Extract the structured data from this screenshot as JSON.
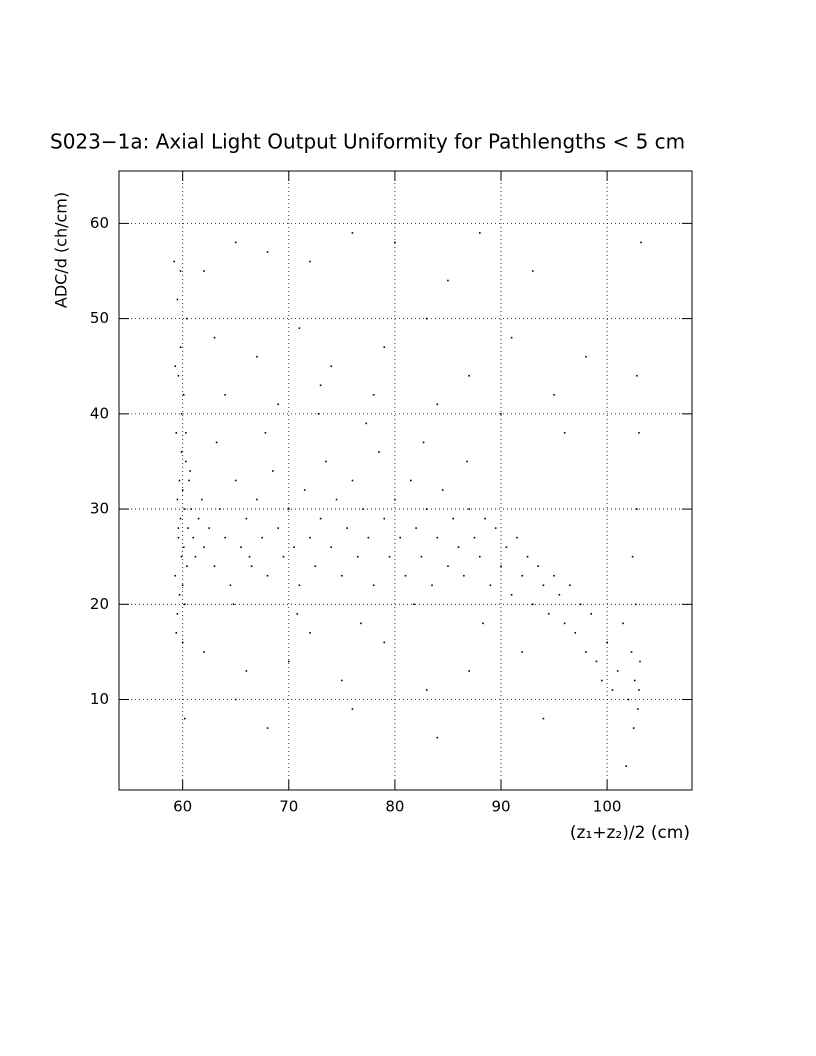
{
  "chart_data": {
    "type": "scatter",
    "title": "S023−1a: Axial Light Output Uniformity for Pathlengths < 5 cm",
    "x_label": "(z₁+z₂)/2 (cm)",
    "y_label": "ADC/d (ch/cm)",
    "xlim": [
      54,
      108
    ],
    "ylim": [
      0.5,
      65.5
    ],
    "xticks": [
      60,
      70,
      80,
      90,
      100
    ],
    "yticks": [
      10,
      20,
      30,
      40,
      50,
      60
    ],
    "grid": true,
    "series": [
      {
        "color": "#000000",
        "x": [
          59.2,
          59.5,
          59.8,
          59.6,
          60.1,
          59.4,
          59.9,
          60.3,
          59.7,
          60.0,
          59.5,
          60.2,
          59.8,
          60.5,
          59.6,
          60.1,
          59.9,
          60.4,
          59.3,
          60.0,
          59.7,
          60.2,
          59.5,
          60.6,
          60.8,
          61.0,
          61.2,
          60.3,
          59.9,
          60.0,
          59.4,
          60.2,
          60.7,
          61.5,
          59.8,
          60.4,
          59.3,
          61.8,
          62.0,
          59.6,
          62.5,
          63,
          63.5,
          64,
          64.5,
          65,
          65.5,
          66,
          66.5,
          67,
          67.5,
          68,
          68.5,
          69,
          69.5,
          70,
          70.5,
          71,
          71.5,
          72,
          72.5,
          73,
          73.5,
          74,
          74.5,
          75,
          75.5,
          76,
          76.5,
          77,
          77.5,
          78,
          78.5,
          79,
          79.5,
          80,
          80.5,
          81,
          81.5,
          82,
          82.5,
          83,
          83.5,
          84,
          84.5,
          85,
          85.5,
          86,
          86.5,
          87,
          87.5,
          88,
          88.5,
          89,
          89.5,
          90,
          90.5,
          91,
          91.5,
          92,
          92.5,
          93,
          93.5,
          94,
          94.5,
          95,
          95.5,
          96,
          63.2,
          67.8,
          72.8,
          77.3,
          82.7,
          86.8,
          64.8,
          70.8,
          76.8,
          81.8,
          88.3,
          66.3,
          62,
          65,
          68,
          72,
          76,
          80,
          85,
          88,
          93,
          63,
          67,
          71,
          74,
          79,
          83,
          87,
          91,
          95,
          98,
          64,
          69,
          73,
          78,
          84,
          90,
          96,
          62,
          66,
          70,
          75,
          79,
          83,
          87,
          92,
          68,
          76,
          84,
          94,
          65,
          72,
          96.5,
          97,
          97.5,
          98,
          98.5,
          99,
          99.5,
          100,
          100.5,
          101,
          101.5,
          102,
          102.3,
          102.6,
          102.9,
          103,
          102.7,
          102.4,
          102.8,
          103.1,
          102.5,
          103,
          102.8,
          103.2,
          101.8
        ],
        "values": [
          56,
          52,
          47,
          44,
          42,
          38,
          36,
          35,
          33,
          32,
          31,
          30,
          29,
          28,
          27,
          26,
          25,
          24,
          23,
          22,
          21,
          20,
          19,
          33,
          30,
          27,
          25,
          38,
          40,
          16,
          17,
          8,
          34,
          29,
          55,
          50,
          45,
          31,
          26,
          28,
          28,
          24,
          30,
          27,
          22,
          33,
          26,
          29,
          24,
          31,
          27,
          23,
          34,
          28,
          25,
          30,
          26,
          22,
          32,
          27,
          24,
          29,
          35,
          26,
          31,
          23,
          28,
          33,
          25,
          30,
          27,
          22,
          36,
          29,
          25,
          31,
          27,
          23,
          33,
          28,
          25,
          30,
          22,
          27,
          32,
          24,
          29,
          26,
          23,
          30,
          27,
          25,
          29,
          22,
          28,
          24,
          26,
          21,
          27,
          23,
          25,
          20,
          24,
          22,
          19,
          23,
          21,
          18,
          37,
          38,
          40,
          39,
          37,
          35,
          20,
          19,
          18,
          20,
          18,
          25,
          55,
          58,
          57,
          56,
          59,
          58,
          54,
          59,
          55,
          48,
          46,
          49,
          45,
          47,
          50,
          44,
          48,
          42,
          46,
          42,
          41,
          43,
          42,
          41,
          40,
          38,
          15,
          13,
          14,
          12,
          16,
          11,
          13,
          15,
          7,
          9,
          6,
          8,
          10,
          17,
          22,
          17,
          20,
          15,
          19,
          14,
          12,
          16,
          11,
          13,
          18,
          10,
          15,
          12,
          9,
          11,
          20,
          25,
          30,
          14,
          7,
          38,
          44,
          58,
          3
        ]
      }
    ]
  }
}
